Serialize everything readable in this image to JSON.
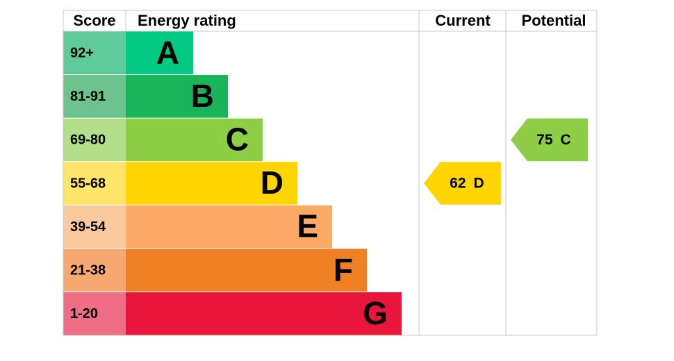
{
  "header": {
    "score": "Score",
    "energy_rating": "Energy rating",
    "current": "Current",
    "potential": "Potential"
  },
  "bands": [
    {
      "range": "92+",
      "letter": "A",
      "color": "#00c781",
      "score_color": "#5fcb9a"
    },
    {
      "range": "81-91",
      "letter": "B",
      "color": "#19b459",
      "score_color": "#6cc38e"
    },
    {
      "range": "69-80",
      "letter": "C",
      "color": "#8dce46",
      "score_color": "#b4df8a"
    },
    {
      "range": "55-68",
      "letter": "D",
      "color": "#ffd500",
      "score_color": "#ffe46a"
    },
    {
      "range": "39-54",
      "letter": "E",
      "color": "#fcaa65",
      "score_color": "#fbc99e"
    },
    {
      "range": "21-38",
      "letter": "F",
      "color": "#ef8023",
      "score_color": "#f5a970"
    },
    {
      "range": "1-20",
      "letter": "G",
      "color": "#e9153b",
      "score_color": "#ef6d85"
    }
  ],
  "current": {
    "score": 62,
    "letter": "D"
  },
  "potential": {
    "score": 75,
    "letter": "C"
  }
}
